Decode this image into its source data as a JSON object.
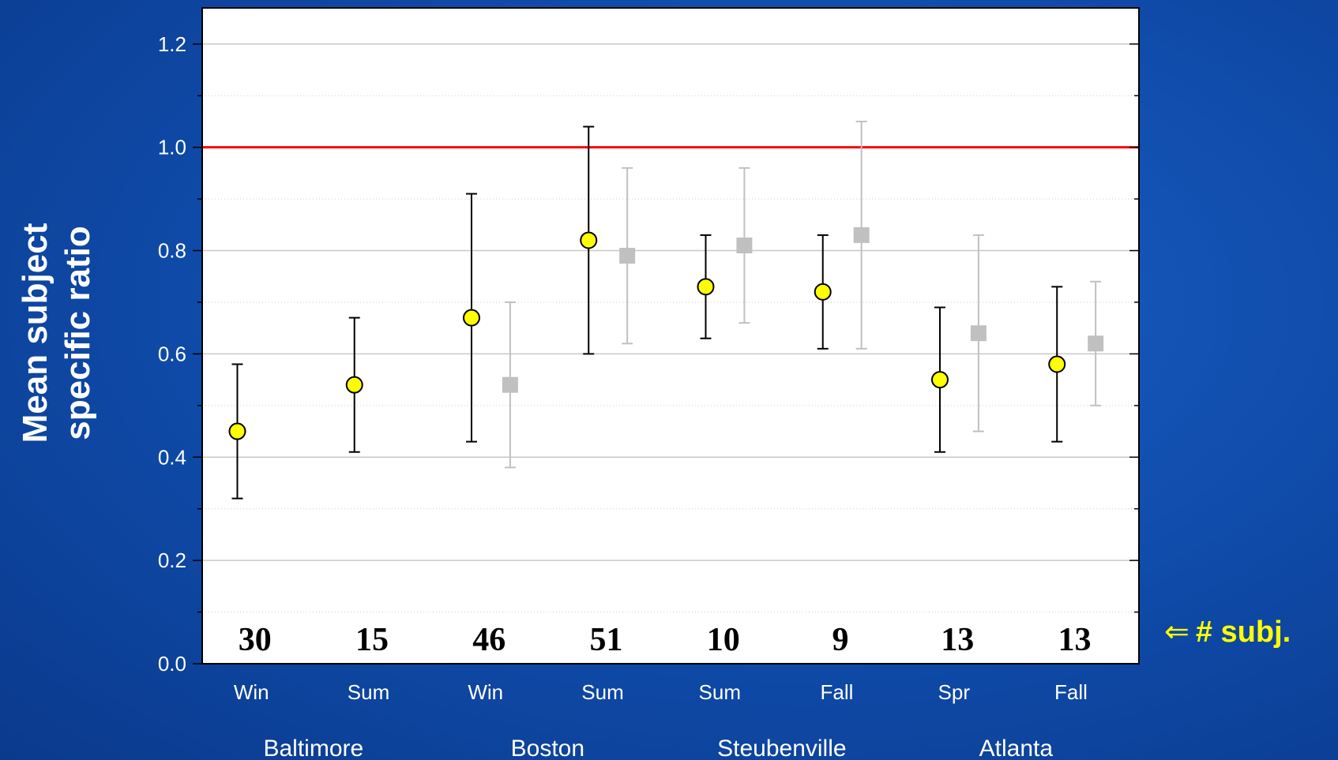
{
  "chart_data": {
    "type": "scatter",
    "title": "",
    "xlabel": "",
    "ylabel": "Mean subject specific ratio",
    "ylabel_lines": [
      "Mean subject",
      "specific ratio"
    ],
    "ylim": [
      0.0,
      1.27
    ],
    "yticks": [
      "0.0",
      "0.2",
      "0.4",
      "0.6",
      "0.8",
      "1.0",
      "1.2"
    ],
    "grid": true,
    "reference_line": {
      "y": 1.0,
      "color": "#ff0000"
    },
    "groups": [
      {
        "city": "Baltimore",
        "seasons": [
          {
            "label": "Win",
            "n": "30",
            "circle": {
              "mean": 0.45,
              "lo": 0.32,
              "hi": 0.58
            },
            "square": null
          },
          {
            "label": "Sum",
            "n": "15",
            "circle": {
              "mean": 0.54,
              "lo": 0.41,
              "hi": 0.67
            },
            "square": null
          }
        ]
      },
      {
        "city": "Boston",
        "seasons": [
          {
            "label": "Win",
            "n": "46",
            "circle": {
              "mean": 0.67,
              "lo": 0.43,
              "hi": 0.91
            },
            "square": {
              "mean": 0.54,
              "lo": 0.38,
              "hi": 0.7
            }
          },
          {
            "label": "Sum",
            "n": "51",
            "circle": {
              "mean": 0.82,
              "lo": 0.6,
              "hi": 1.04
            },
            "square": {
              "mean": 0.79,
              "lo": 0.62,
              "hi": 0.96
            }
          }
        ]
      },
      {
        "city": "Steubenville",
        "seasons": [
          {
            "label": "Sum",
            "n": "10",
            "circle": {
              "mean": 0.73,
              "lo": 0.63,
              "hi": 0.83
            },
            "square": {
              "mean": 0.81,
              "lo": 0.66,
              "hi": 0.96
            }
          },
          {
            "label": "Fall",
            "n": "9",
            "circle": {
              "mean": 0.72,
              "lo": 0.61,
              "hi": 0.83
            },
            "square": {
              "mean": 0.83,
              "lo": 0.61,
              "hi": 1.05
            }
          }
        ]
      },
      {
        "city": "Atlanta",
        "seasons": [
          {
            "label": "Spr",
            "n": "13",
            "circle": {
              "mean": 0.55,
              "lo": 0.41,
              "hi": 0.69
            },
            "square": {
              "mean": 0.64,
              "lo": 0.45,
              "hi": 0.83
            }
          },
          {
            "label": "Fall",
            "n": "13",
            "circle": {
              "mean": 0.58,
              "lo": 0.43,
              "hi": 0.73
            },
            "square": {
              "mean": 0.62,
              "lo": 0.5,
              "hi": 0.74
            }
          }
        ]
      }
    ],
    "colors": {
      "circle_fill": "#ffff00",
      "circle_bar": "#000000",
      "square_fill": "#c0c0c0",
      "square_bar": "#c0c0c0",
      "reference": "#ff0000",
      "background": "#1251b5"
    }
  },
  "annotation": {
    "arrow": "⇐",
    "text": "# subj."
  }
}
